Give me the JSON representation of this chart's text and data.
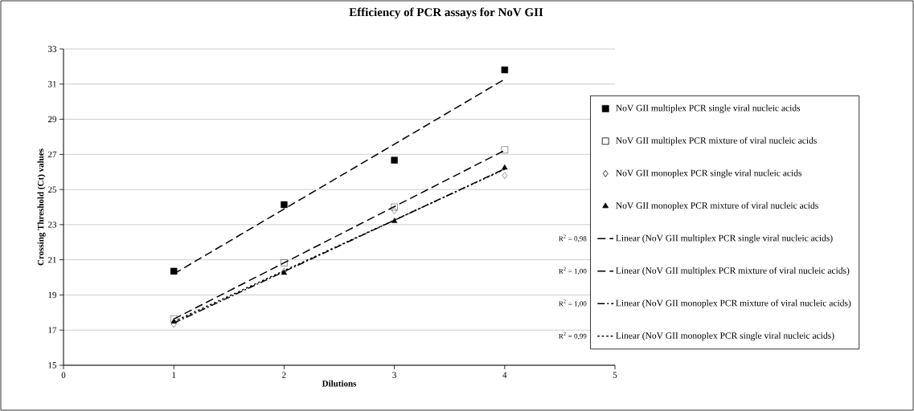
{
  "chart_data": {
    "type": "scatter",
    "title": "Efficiency of PCR assays for NoV GII",
    "xlabel": "Dilutions",
    "ylabel": "Crossing Threshold (Ct) values",
    "x": [
      1,
      2,
      3,
      4
    ],
    "series": [
      {
        "name": "NoV GII multiplex PCR single viral nucleic acids",
        "color": "#000000",
        "marker": "square",
        "values": [
          20.35,
          24.14,
          26.67,
          31.81
        ]
      },
      {
        "name": "NoV GII multiplex PCR mixture of viral nucleic acids",
        "color": "#000000",
        "marker": "square-open",
        "values": [
          17.64,
          20.83,
          24.0,
          27.26
        ]
      },
      {
        "name": "NoV GII monoplex PCR single viral nucleic acids",
        "color": "#000000",
        "marker": "diamond-open",
        "values": [
          17.33,
          20.35,
          23.8,
          25.8
        ]
      },
      {
        "name": "NoV GII monoplex PCR mixture of viral nucleic acids",
        "color": "#000000",
        "marker": "triangle",
        "values": [
          17.48,
          20.25,
          23.2,
          26.24
        ]
      },
      {
        "name": "Linear (NoV GII multiplex PCR single viral nucleic acids)",
        "type": "line",
        "color": "#000000",
        "line_style": "dashed",
        "values": [
          20.2,
          23.89,
          27.58,
          31.28
        ]
      },
      {
        "name": "Linear (NoV GII multiplex PCR mixture of viral nucleic acids)",
        "type": "line",
        "color": "#000000",
        "line_style": "dashed",
        "values": [
          17.63,
          20.83,
          24.03,
          27.23
        ]
      },
      {
        "name": "Linear (NoV GII monoplex PCR mixture of viral nucleic acids)",
        "type": "line",
        "color": "#000000",
        "line_style": "dashdot",
        "values": [
          17.4,
          20.33,
          23.25,
          26.18
        ]
      },
      {
        "name": "Linear (NoV GII monoplex PCR single viral nucleic acids)",
        "type": "line",
        "color": "#000000",
        "line_style": "dotted",
        "values": [
          17.49,
          20.38,
          23.26,
          26.15
        ]
      }
    ],
    "annotations": [
      "R$^{2}$ = 0,98",
      "R$^{2}$ = 1,00",
      "R$^{2}$ = 1,00",
      "R$^{2}$ = 0,99"
    ],
    "xlim": [
      0,
      5
    ],
    "xticks": [
      0,
      1,
      2,
      3,
      4,
      5
    ],
    "ylim": [
      15,
      33
    ],
    "yticks": [
      15,
      17,
      19,
      21,
      23,
      25,
      27,
      29,
      31,
      33
    ],
    "grid": "y",
    "legend": "right"
  }
}
